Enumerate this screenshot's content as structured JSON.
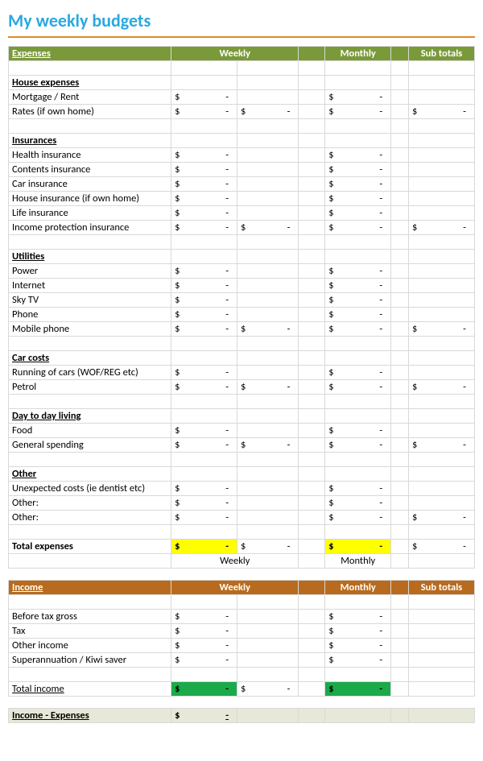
{
  "title": "My weekly budgets",
  "title_color": "#2aa8e0",
  "rule_color": "#e08a2a",
  "dash": "-",
  "currency": "$",
  "expenses": {
    "header_bg": "#7a9a3a",
    "label": "Expenses",
    "weekly_label": "Weekly",
    "monthly_label": "Monthly",
    "subtotals_label": "Sub totals",
    "total_label": "Total expenses",
    "total_highlight": "#ffff00",
    "below_weekly": "Weekly",
    "below_monthly": "Monthly",
    "sections": [
      {
        "name": "House expenses",
        "rows": [
          {
            "label": "Mortgage / Rent",
            "weekly": "-",
            "monthly": "-"
          },
          {
            "label": "Rates (if own home)",
            "weekly": "-",
            "weekly_sub": "-",
            "monthly": "-",
            "subtotal": "-"
          }
        ]
      },
      {
        "name": "Insurances",
        "rows": [
          {
            "label": "Health insurance",
            "weekly": "-",
            "monthly": "-"
          },
          {
            "label": "Contents insurance",
            "weekly": "-",
            "monthly": "-"
          },
          {
            "label": "Car insurance",
            "weekly": "-",
            "monthly": "-"
          },
          {
            "label": "House insurance (if own home)",
            "weekly": "-",
            "monthly": "-"
          },
          {
            "label": "Life insurance",
            "weekly": "-",
            "monthly": "-"
          },
          {
            "label": "Income protection insurance",
            "weekly": "-",
            "weekly_sub": "-",
            "monthly": "-",
            "subtotal": "-"
          }
        ]
      },
      {
        "name": "Utilities",
        "rows": [
          {
            "label": "Power",
            "weekly": "-",
            "monthly": "-"
          },
          {
            "label": "Internet",
            "weekly": "-",
            "monthly": "-"
          },
          {
            "label": "Sky TV",
            "weekly": "-",
            "monthly": "-"
          },
          {
            "label": "Phone",
            "weekly": "-",
            "monthly": "-"
          },
          {
            "label": "Mobile phone",
            "weekly": "-",
            "weekly_sub": "-",
            "monthly": "-",
            "subtotal": "-"
          }
        ]
      },
      {
        "name": "Car costs",
        "rows": [
          {
            "label": "Running of cars (WOF/REG etc)",
            "weekly": "-",
            "monthly": "-"
          },
          {
            "label": "Petrol",
            "weekly": "-",
            "weekly_sub": "-",
            "monthly": "-",
            "subtotal": "-"
          }
        ]
      },
      {
        "name": "Day to day living",
        "rows": [
          {
            "label": "Food",
            "weekly": "-",
            "monthly": "-"
          },
          {
            "label": "General spending",
            "weekly": "-",
            "weekly_sub": "-",
            "monthly": "-",
            "subtotal": "-"
          }
        ]
      },
      {
        "name": "Other",
        "rows": [
          {
            "label": "Unexpected costs (ie dentist etc)",
            "weekly": "-",
            "monthly": "-"
          },
          {
            "label": "Other:",
            "weekly": "-",
            "monthly": "-"
          },
          {
            "label": "Other:",
            "weekly": "-",
            "monthly": "-",
            "subtotal": "-"
          }
        ]
      }
    ]
  },
  "income": {
    "header_bg": "#b86b1e",
    "label": "Income",
    "weekly_label": "Weekly",
    "monthly_label": "Monthly",
    "subtotals_label": "Sub totals",
    "total_label": "Total income",
    "total_highlight": "#1aaa4a",
    "rows": [
      {
        "label": "Before tax gross",
        "weekly": "-",
        "monthly": "-"
      },
      {
        "label": "Tax",
        "weekly": "-",
        "monthly": "-"
      },
      {
        "label": "Other income",
        "weekly": "-",
        "monthly": "-"
      },
      {
        "label": "Superannuation / Kiwi saver",
        "weekly": "-",
        "monthly": "-"
      }
    ]
  },
  "summary": {
    "bg": "#e8e8d8",
    "label": "Income - Expenses",
    "value": "-"
  }
}
